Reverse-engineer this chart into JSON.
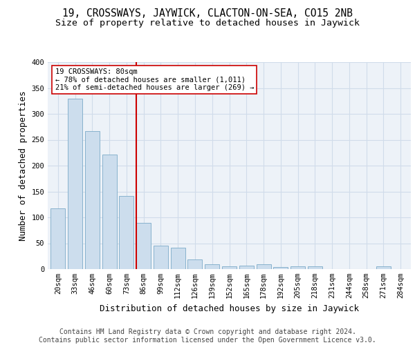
{
  "title1": "19, CROSSWAYS, JAYWICK, CLACTON-ON-SEA, CO15 2NB",
  "title2": "Size of property relative to detached houses in Jaywick",
  "xlabel": "Distribution of detached houses by size in Jaywick",
  "ylabel": "Number of detached properties",
  "footer1": "Contains HM Land Registry data © Crown copyright and database right 2024.",
  "footer2": "Contains public sector information licensed under the Open Government Licence v3.0.",
  "bar_labels": [
    "20sqm",
    "33sqm",
    "46sqm",
    "60sqm",
    "73sqm",
    "86sqm",
    "99sqm",
    "112sqm",
    "126sqm",
    "139sqm",
    "152sqm",
    "165sqm",
    "178sqm",
    "192sqm",
    "205sqm",
    "218sqm",
    "231sqm",
    "244sqm",
    "258sqm",
    "271sqm",
    "284sqm"
  ],
  "bar_values": [
    117,
    330,
    267,
    222,
    142,
    90,
    45,
    42,
    19,
    10,
    6,
    7,
    9,
    4,
    5,
    5,
    0,
    0,
    0,
    5,
    0
  ],
  "bar_color": "#ccdded",
  "bar_edge_color": "#7aaac8",
  "vline_x": 4.55,
  "vline_color": "#cc0000",
  "annotation_text": "19 CROSSWAYS: 80sqm\n← 78% of detached houses are smaller (1,011)\n21% of semi-detached houses are larger (269) →",
  "annotation_box_color": "#ffffff",
  "annotation_box_edge": "#cc0000",
  "ylim": [
    0,
    400
  ],
  "yticks": [
    0,
    50,
    100,
    150,
    200,
    250,
    300,
    350,
    400
  ],
  "grid_color": "#d0dcea",
  "bg_color": "#edf2f8",
  "title1_fontsize": 10.5,
  "title2_fontsize": 9.5,
  "axis_label_fontsize": 9,
  "tick_fontsize": 7.5,
  "footer_fontsize": 7
}
